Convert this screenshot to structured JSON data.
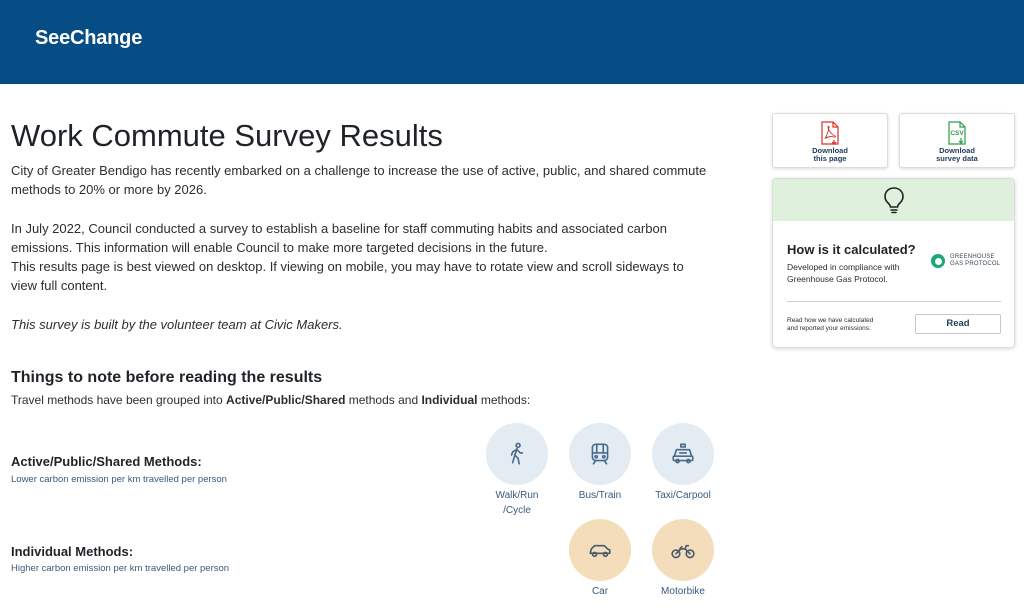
{
  "header": {
    "brand": "SeeChange",
    "bg_color": "#064d85"
  },
  "main": {
    "title": "Work Commute Survey Results",
    "intro": "City of Greater Bendigo has recently embarked on a challenge to increase the use of active, public, and shared commute methods to 20% or more by 2026.",
    "survey_para_1": "In July 2022, Council conducted a survey to establish a baseline for staff commuting habits and associated carbon emissions. This information will enable Council to make more targeted decisions in the future.",
    "survey_para_2": "This results page is best viewed on desktop. If viewing on mobile, you may have to rotate view and scroll sideways to view full content.",
    "credit": "This survey is built by the volunteer team at Civic Makers.",
    "notes_heading": "Things to note before reading the results",
    "notes_text_1": "Travel methods have been grouped into ",
    "notes_bold_1": "Active/Public/Shared",
    "notes_text_2": " methods and ",
    "notes_bold_2": "Individual",
    "notes_text_3": " methods:",
    "groups": [
      {
        "title": "Active/Public/Shared Methods:",
        "subtitle": "Lower carbon emission per km travelled per person",
        "color": "#e3ebf3",
        "methods": [
          {
            "label_1": "Walk/Run",
            "label_2": "/Cycle",
            "icon": "walk-icon"
          },
          {
            "label_1": "Bus/Train",
            "label_2": "",
            "icon": "train-icon"
          },
          {
            "label_1": "Taxi/Carpool",
            "label_2": "",
            "icon": "taxi-icon"
          }
        ]
      },
      {
        "title": "Individual Methods:",
        "subtitle": "Higher carbon emission per km travelled per person",
        "color": "#f4ddba",
        "methods": [
          {
            "label_1": "Car",
            "label_2": "",
            "icon": "car-icon"
          },
          {
            "label_1": "Motorbike",
            "label_2": "",
            "icon": "motorbike-icon"
          }
        ]
      }
    ]
  },
  "sidebar": {
    "download_page": {
      "line1": "Download",
      "line2": "this page",
      "icon": "pdf-icon"
    },
    "download_data": {
      "line1": "Download",
      "line2": "survey data",
      "icon": "csv-icon",
      "icon_text": "CSV"
    },
    "calc_card": {
      "icon": "lightbulb-icon",
      "header_color": "#dff1dc",
      "title": "How is it calculated?",
      "desc_1": "Developed in compliance with",
      "desc_2": "Greenhouse Gas Protocol.",
      "logo_line1": "GREENHOUSE",
      "logo_line2": "GAS PROTOCOL",
      "read_desc_1": "Read how we have calculated",
      "read_desc_2": "and reported your emissions:",
      "read_button": "Read"
    }
  }
}
